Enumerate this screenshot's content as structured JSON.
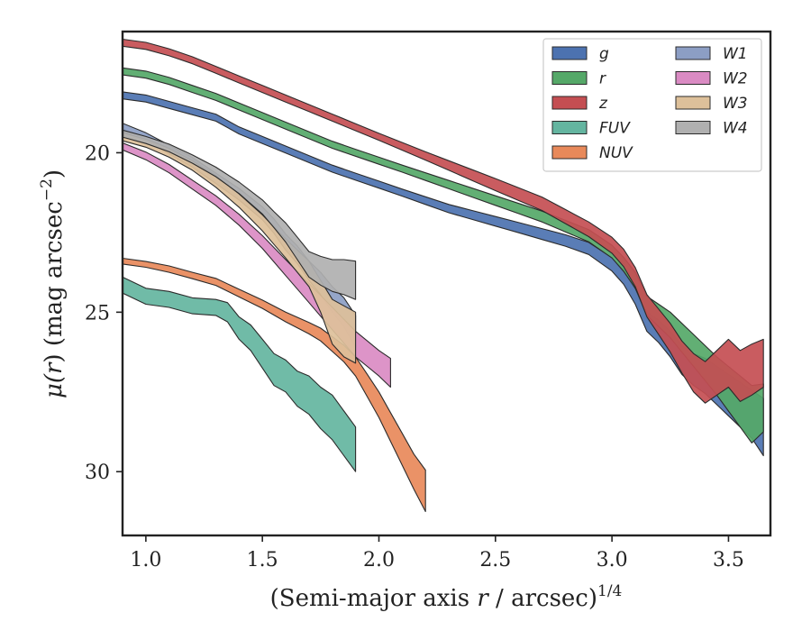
{
  "chart_data": {
    "type": "area",
    "xlabel": "(Semi-major axis r / arcsec)1/4",
    "xlabel_parts": {
      "pre": "(Semi-major axis ",
      "var": "r",
      "post": " / arcsec)",
      "sup": "1/4"
    },
    "ylabel": "μ(r) (mag arcsec−2)",
    "ylabel_parts": {
      "pre": "μ(",
      "var": "r",
      "mid": ") (mag arcsec",
      "sup": "−2",
      "post": ")"
    },
    "xlim": [
      0.9,
      3.68
    ],
    "ylim": [
      32,
      16.2
    ],
    "y_inverted": true,
    "xticks": [
      1.0,
      1.5,
      2.0,
      2.5,
      3.0,
      3.5
    ],
    "xtick_labels": [
      "1.0",
      "1.5",
      "2.0",
      "2.5",
      "3.0",
      "3.5"
    ],
    "yticks": [
      20,
      25,
      30
    ],
    "ytick_labels": [
      "20",
      "25",
      "30"
    ],
    "grid": false,
    "legend_position": "top-right",
    "legend_columns": 2,
    "series": [
      {
        "name": "g",
        "color": "#4C72B0",
        "x": [
          0.9,
          1.0,
          1.1,
          1.2,
          1.3,
          1.4,
          1.5,
          1.6,
          1.7,
          1.8,
          1.9,
          2.0,
          2.1,
          2.2,
          2.3,
          2.4,
          2.5,
          2.6,
          2.7,
          2.8,
          2.9,
          3.0,
          3.05,
          3.1,
          3.15,
          3.2,
          3.25,
          3.3,
          3.35,
          3.4,
          3.45,
          3.5,
          3.55,
          3.6,
          3.65
        ],
        "y": [
          18.2,
          18.3,
          18.5,
          18.7,
          18.9,
          19.3,
          19.6,
          19.9,
          20.2,
          20.5,
          20.75,
          21.0,
          21.25,
          21.5,
          21.75,
          21.95,
          22.15,
          22.35,
          22.55,
          22.75,
          23.0,
          23.5,
          23.9,
          24.5,
          25.3,
          25.6,
          26.0,
          26.5,
          26.8,
          27.0,
          27.3,
          27.6,
          27.9,
          28.2,
          28.6
        ],
        "width": [
          0.22,
          0.22,
          0.22,
          0.22,
          0.22,
          0.22,
          0.22,
          0.22,
          0.22,
          0.22,
          0.22,
          0.22,
          0.22,
          0.24,
          0.26,
          0.28,
          0.3,
          0.32,
          0.34,
          0.36,
          0.38,
          0.42,
          0.45,
          0.5,
          0.6,
          0.7,
          0.8,
          0.9,
          1.0,
          1.1,
          1.2,
          1.3,
          1.4,
          1.5,
          1.8
        ]
      },
      {
        "name": "r",
        "color": "#55A868",
        "x": [
          0.9,
          1.0,
          1.1,
          1.2,
          1.3,
          1.4,
          1.5,
          1.6,
          1.7,
          1.8,
          1.9,
          2.0,
          2.1,
          2.2,
          2.3,
          2.4,
          2.5,
          2.6,
          2.7,
          2.8,
          2.9,
          3.0,
          3.05,
          3.1,
          3.15,
          3.2,
          3.25,
          3.3,
          3.35,
          3.4,
          3.45,
          3.5,
          3.55,
          3.6,
          3.65
        ],
        "y": [
          17.45,
          17.55,
          17.75,
          18.0,
          18.25,
          18.55,
          18.85,
          19.15,
          19.45,
          19.75,
          20.0,
          20.25,
          20.5,
          20.75,
          21.0,
          21.25,
          21.5,
          21.75,
          22.0,
          22.3,
          22.6,
          23.1,
          23.5,
          24.0,
          24.8,
          25.1,
          25.4,
          25.8,
          26.2,
          26.6,
          27.0,
          27.4,
          27.8,
          28.2,
          28.0
        ],
        "width": [
          0.22,
          0.22,
          0.22,
          0.22,
          0.22,
          0.22,
          0.22,
          0.22,
          0.22,
          0.22,
          0.22,
          0.22,
          0.22,
          0.24,
          0.26,
          0.28,
          0.3,
          0.32,
          0.34,
          0.36,
          0.38,
          0.4,
          0.44,
          0.5,
          0.6,
          0.7,
          0.8,
          0.9,
          1.0,
          1.1,
          1.2,
          1.4,
          1.6,
          1.8,
          1.5
        ]
      },
      {
        "name": "z",
        "color": "#C44E52",
        "x": [
          0.9,
          1.0,
          1.1,
          1.2,
          1.3,
          1.4,
          1.5,
          1.6,
          1.7,
          1.8,
          1.9,
          2.0,
          2.1,
          2.2,
          2.3,
          2.4,
          2.5,
          2.6,
          2.7,
          2.8,
          2.9,
          3.0,
          3.05,
          3.1,
          3.15,
          3.2,
          3.25,
          3.3,
          3.35,
          3.4,
          3.45,
          3.5,
          3.55,
          3.6,
          3.65
        ],
        "y": [
          16.55,
          16.65,
          16.85,
          17.1,
          17.4,
          17.7,
          18.0,
          18.3,
          18.6,
          18.9,
          19.2,
          19.5,
          19.8,
          20.1,
          20.4,
          20.7,
          21.0,
          21.3,
          21.6,
          22.0,
          22.4,
          22.9,
          23.3,
          23.9,
          24.8,
          25.3,
          25.8,
          26.4,
          26.9,
          27.2,
          26.9,
          26.6,
          27.0,
          26.8,
          26.6
        ],
        "width": [
          0.22,
          0.22,
          0.22,
          0.22,
          0.22,
          0.22,
          0.22,
          0.22,
          0.22,
          0.22,
          0.22,
          0.22,
          0.24,
          0.26,
          0.3,
          0.34,
          0.38,
          0.4,
          0.42,
          0.44,
          0.46,
          0.5,
          0.55,
          0.6,
          0.7,
          0.8,
          0.9,
          1.0,
          1.2,
          1.3,
          1.4,
          1.5,
          1.6,
          1.6,
          1.5
        ]
      },
      {
        "name": "FUV",
        "color": "#64B5A0",
        "x": [
          0.9,
          1.0,
          1.1,
          1.2,
          1.3,
          1.35,
          1.4,
          1.45,
          1.5,
          1.55,
          1.6,
          1.65,
          1.7,
          1.75,
          1.8,
          1.85,
          1.9
        ],
        "y": [
          24.15,
          24.5,
          24.6,
          24.8,
          24.85,
          25.0,
          25.5,
          25.8,
          26.3,
          26.8,
          27.0,
          27.4,
          27.6,
          28.0,
          28.3,
          28.8,
          29.3
        ],
        "width": [
          0.5,
          0.5,
          0.5,
          0.5,
          0.5,
          0.6,
          0.7,
          0.8,
          0.9,
          1.0,
          1.0,
          1.1,
          1.2,
          1.3,
          1.4,
          1.4,
          1.4
        ]
      },
      {
        "name": "NUV",
        "color": "#E8895A",
        "x": [
          0.9,
          1.0,
          1.1,
          1.2,
          1.3,
          1.4,
          1.5,
          1.6,
          1.7,
          1.75,
          1.8,
          1.85,
          1.9,
          1.95,
          2.0,
          2.05,
          2.1,
          2.15,
          2.2
        ],
        "y": [
          23.4,
          23.5,
          23.65,
          23.85,
          24.05,
          24.4,
          24.75,
          25.15,
          25.5,
          25.7,
          26.0,
          26.3,
          26.7,
          27.3,
          27.9,
          28.6,
          29.3,
          30.0,
          30.6
        ],
        "width": [
          0.18,
          0.18,
          0.2,
          0.2,
          0.22,
          0.24,
          0.26,
          0.3,
          0.36,
          0.4,
          0.46,
          0.52,
          0.6,
          0.7,
          0.8,
          0.9,
          1.0,
          1.1,
          1.3
        ]
      },
      {
        "name": "W1",
        "color": "#8C9EC4",
        "x": [
          0.9,
          1.0,
          1.1,
          1.2,
          1.3,
          1.4,
          1.5,
          1.55,
          1.6,
          1.65,
          1.7,
          1.75,
          1.8,
          1.85,
          1.9
        ],
        "y": [
          19.2,
          19.5,
          19.9,
          20.3,
          20.8,
          21.3,
          21.9,
          22.3,
          22.8,
          23.2,
          23.7,
          24.1,
          24.6,
          25.0,
          25.6
        ],
        "width": [
          0.25,
          0.25,
          0.28,
          0.3,
          0.32,
          0.36,
          0.4,
          0.45,
          0.5,
          0.55,
          0.6,
          0.7,
          0.8,
          0.9,
          1.0
        ]
      },
      {
        "name": "W2",
        "color": "#DA8BC3",
        "x": [
          0.9,
          1.0,
          1.1,
          1.2,
          1.3,
          1.4,
          1.5,
          1.55,
          1.6,
          1.65,
          1.7,
          1.75,
          1.8,
          1.85,
          1.9,
          1.95,
          2.0,
          2.05
        ],
        "y": [
          19.8,
          20.1,
          20.5,
          21.0,
          21.5,
          22.1,
          22.8,
          23.2,
          23.6,
          24.0,
          24.4,
          24.8,
          25.2,
          25.6,
          26.0,
          26.3,
          26.6,
          26.9
        ],
        "width": [
          0.22,
          0.24,
          0.26,
          0.28,
          0.3,
          0.34,
          0.4,
          0.45,
          0.5,
          0.55,
          0.6,
          0.65,
          0.7,
          0.75,
          0.8,
          0.8,
          0.8,
          0.9
        ]
      },
      {
        "name": "W3",
        "color": "#DDC09A",
        "x": [
          0.9,
          1.0,
          1.1,
          1.2,
          1.3,
          1.4,
          1.5,
          1.55,
          1.6,
          1.65,
          1.7,
          1.75,
          1.8,
          1.85,
          1.9
        ],
        "y": [
          19.5,
          19.7,
          20.0,
          20.4,
          20.9,
          21.5,
          22.2,
          22.6,
          23.0,
          23.4,
          23.8,
          24.5,
          25.3,
          25.6,
          25.8
        ],
        "width": [
          0.25,
          0.25,
          0.28,
          0.3,
          0.36,
          0.42,
          0.5,
          0.55,
          0.6,
          0.7,
          0.8,
          1.0,
          1.4,
          1.6,
          1.6
        ]
      },
      {
        "name": "W4",
        "color": "#B0B0B0",
        "x": [
          0.9,
          1.0,
          1.1,
          1.2,
          1.3,
          1.4,
          1.5,
          1.55,
          1.6,
          1.65,
          1.7,
          1.75,
          1.8,
          1.85,
          1.9
        ],
        "y": [
          19.4,
          19.6,
          19.85,
          20.2,
          20.6,
          21.1,
          21.7,
          22.1,
          22.5,
          23.0,
          23.5,
          23.7,
          23.85,
          23.9,
          24.0
        ],
        "width": [
          0.22,
          0.22,
          0.24,
          0.26,
          0.3,
          0.36,
          0.44,
          0.5,
          0.6,
          0.7,
          0.8,
          0.9,
          1.0,
          1.1,
          1.2
        ]
      }
    ]
  }
}
